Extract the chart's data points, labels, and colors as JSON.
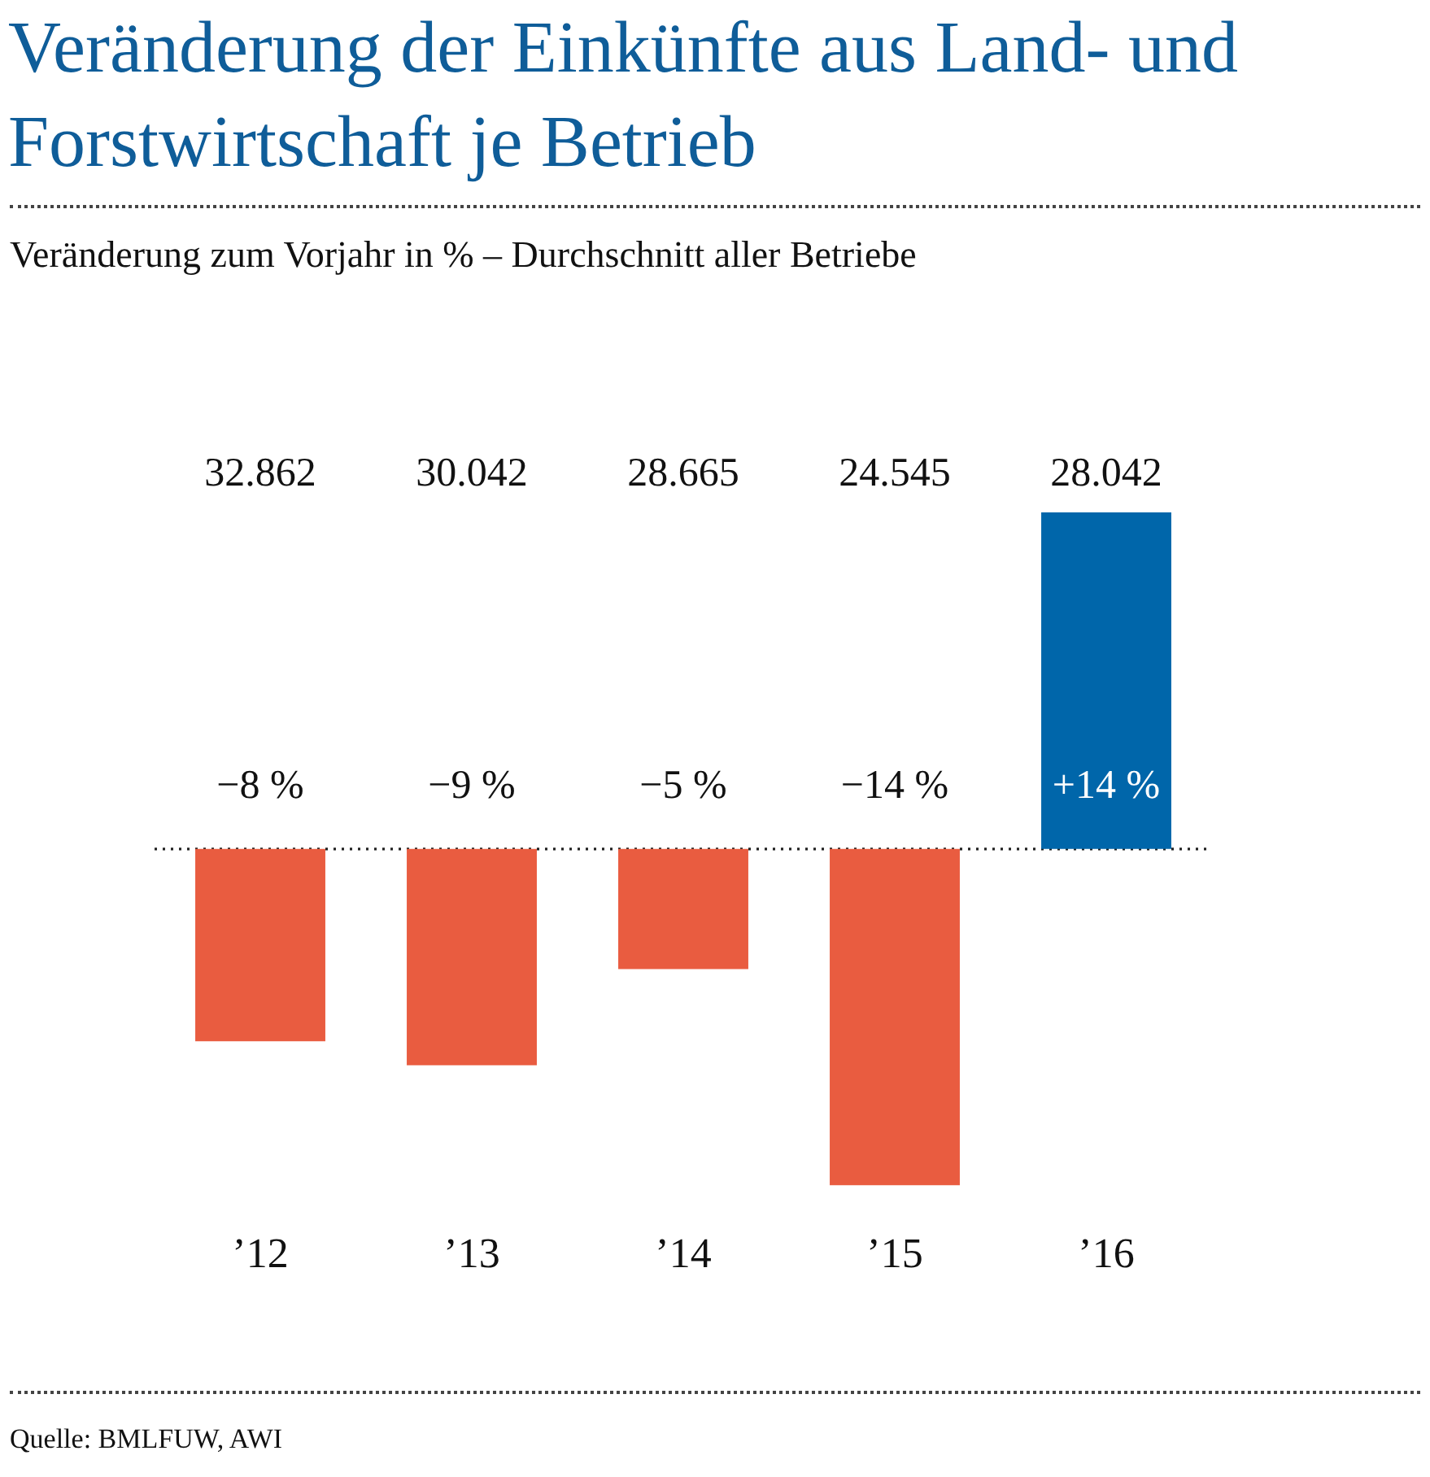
{
  "chart_data": {
    "type": "bar",
    "title": "Veränderung der Einkünfte aus Land- und Forstwirtschaft je Betrieb",
    "subtitle": "Veränderung zum Vorjahr in % – Durchschnitt aller Betriebe",
    "categories": [
      "’12",
      "’13",
      "’14",
      "’15",
      "’16"
    ],
    "values": [
      -8,
      -9,
      -5,
      -14,
      14
    ],
    "colors": [
      "#e95c40",
      "#e95c40",
      "#e95c40",
      "#e95c40",
      "#0066aa"
    ],
    "value_labels": [
      "−8 %",
      "−9 %",
      "−5 %",
      "−14 %",
      "+14 %"
    ],
    "annotations": [
      "32.862",
      "30.042",
      "28.665",
      "24.545",
      "28.042",
      "Quelle: BMLFUW, AWI"
    ],
    "ref_lines": [
      {
        "axis": "y",
        "value": 0,
        "color": "#222222",
        "line_style": "dotted"
      }
    ],
    "tick_labels": "x",
    "grid": false,
    "legend": false
  }
}
